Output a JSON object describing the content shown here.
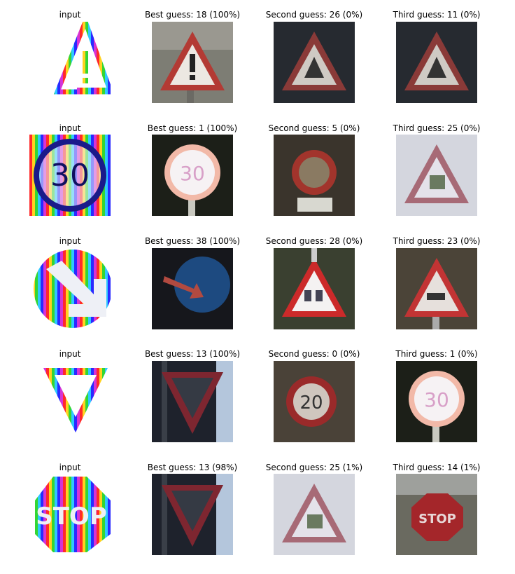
{
  "rows": [
    {
      "input_title": "input",
      "sign": "warning-exclamation",
      "guesses": [
        {
          "title": "Best guess: 18 (100%)",
          "sign": "warning-exclamation-photo"
        },
        {
          "title": "Second guess: 26 (0%)",
          "sign": "warning-photo-dark"
        },
        {
          "title": "Third guess: 11 (0%)",
          "sign": "warning-photo-dark"
        }
      ]
    },
    {
      "input_title": "input",
      "sign": "speed-limit-30",
      "guesses": [
        {
          "title": "Best guess: 1 (100%)",
          "sign": "speed-limit-30-photo"
        },
        {
          "title": "Second guess: 5 (0%)",
          "sign": "round-sign-photo"
        },
        {
          "title": "Third guess: 25 (0%)",
          "sign": "warning-roadwork-photo"
        }
      ]
    },
    {
      "input_title": "input",
      "sign": "keep-right",
      "guesses": [
        {
          "title": "Best guess: 38 (100%)",
          "sign": "keep-right-photo"
        },
        {
          "title": "Second guess: 28 (0%)",
          "sign": "warning-children-photo"
        },
        {
          "title": "Third guess: 23 (0%)",
          "sign": "warning-slippery-photo"
        }
      ]
    },
    {
      "input_title": "input",
      "sign": "yield",
      "guesses": [
        {
          "title": "Best guess: 13 (100%)",
          "sign": "yield-photo"
        },
        {
          "title": "Second guess: 0 (0%)",
          "sign": "speed-limit-20-photo"
        },
        {
          "title": "Third guess: 1 (0%)",
          "sign": "speed-limit-30-photo"
        }
      ]
    },
    {
      "input_title": "input",
      "sign": "stop",
      "input_text": "STOP",
      "guesses": [
        {
          "title": "Best guess: 13 (98%)",
          "sign": "yield-photo"
        },
        {
          "title": "Second guess: 25 (1%)",
          "sign": "warning-roadwork-photo"
        },
        {
          "title": "Third guess: 14 (1%)",
          "sign": "stop-photo",
          "text": "STOP"
        }
      ]
    }
  ]
}
